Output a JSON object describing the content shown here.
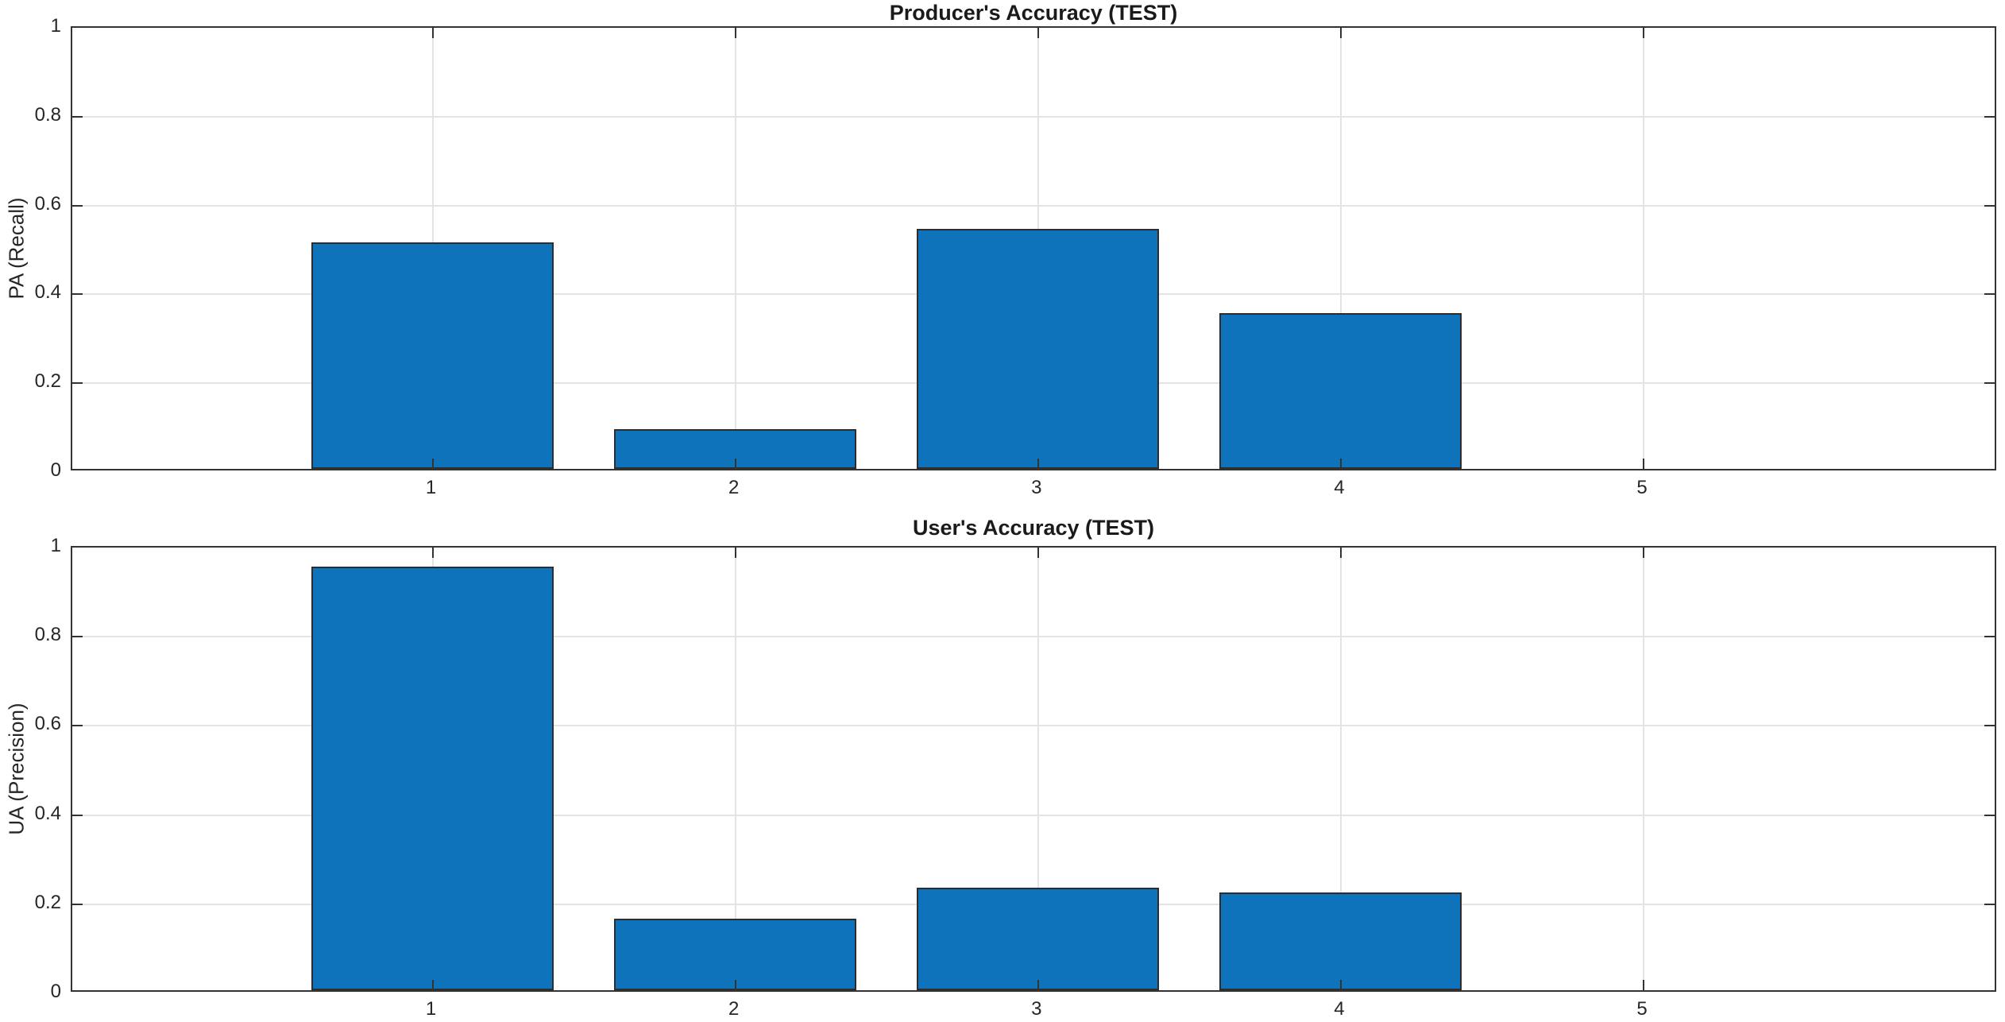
{
  "figure": {
    "background": "#ffffff",
    "kind": "matlab-style figure with two stacked bar subplots"
  },
  "colors": {
    "bar_fill": "#0e73ba",
    "bar_edge": "#2d2d2d",
    "axis_box": "#333333",
    "grid": "#e4e4e4",
    "text": "#262626",
    "title_text": "#1a1a1a"
  },
  "chart_data": [
    {
      "type": "bar",
      "title": "Producer's Accuracy (TEST)",
      "ylabel": "PA (Recall)",
      "xlabel": "",
      "categories": [
        "1",
        "2",
        "3",
        "4",
        "5"
      ],
      "values": [
        0.51,
        0.09,
        0.54,
        0.35,
        0
      ],
      "ylim": [
        0,
        1
      ],
      "yticks": [
        0,
        0.2,
        0.4,
        0.6,
        0.8,
        1
      ],
      "ytick_labels": [
        "0",
        "0.2",
        "0.4",
        "0.6",
        "0.8",
        "1"
      ],
      "xlim": [
        -0.19,
        6.17
      ],
      "bar_width_fraction": 0.8,
      "grid": true,
      "legend_position": "none"
    },
    {
      "type": "bar",
      "title": "User's Accuracy (TEST)",
      "ylabel": "UA (Precision)",
      "xlabel": "",
      "categories": [
        "1",
        "2",
        "3",
        "4",
        "5"
      ],
      "values": [
        0.95,
        0.16,
        0.23,
        0.22,
        0
      ],
      "ylim": [
        0,
        1
      ],
      "yticks": [
        0,
        0.2,
        0.4,
        0.6,
        0.8,
        1
      ],
      "ytick_labels": [
        "0",
        "0.2",
        "0.4",
        "0.6",
        "0.8",
        "1"
      ],
      "xlim": [
        -0.19,
        6.17
      ],
      "bar_width_fraction": 0.8,
      "grid": true,
      "legend_position": "none"
    }
  ]
}
